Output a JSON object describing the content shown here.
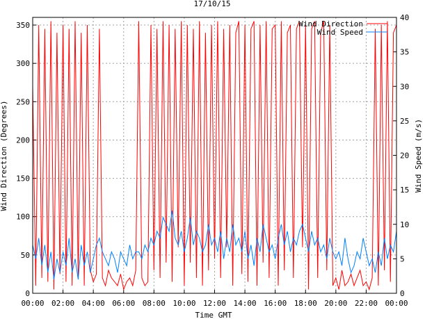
{
  "chart_data": {
    "type": "line",
    "title": "17/10/15",
    "xlabel": "Time GMT",
    "ylabel_left": "Wind Direction (Degrees)",
    "ylabel_right": "Wind Speed (m/s)",
    "x_ticks": [
      "00:00",
      "02:00",
      "04:00",
      "06:00",
      "08:00",
      "10:00",
      "12:00",
      "14:00",
      "16:00",
      "18:00",
      "20:00",
      "22:00",
      "00:00"
    ],
    "y_left_ticks": [
      0,
      50,
      100,
      150,
      200,
      250,
      300,
      350
    ],
    "y_right_ticks": [
      0,
      5,
      10,
      15,
      20,
      25,
      30,
      35,
      40
    ],
    "xlim_hours": [
      0,
      24
    ],
    "ylim_left": [
      0,
      360
    ],
    "ylim_right": [
      0,
      40
    ],
    "grid": true,
    "legend_position": "top-right",
    "colors": {
      "direction": "#ff0000",
      "speed": "#0080ff"
    },
    "series": [
      {
        "name": "Wind Direction",
        "axis": "left",
        "x_hours": [
          0.0,
          0.2,
          0.4,
          0.6,
          0.8,
          1.0,
          1.2,
          1.4,
          1.6,
          1.8,
          2.0,
          2.2,
          2.4,
          2.6,
          2.8,
          3.0,
          3.2,
          3.4,
          3.6,
          3.8,
          4.0,
          4.2,
          4.4,
          4.6,
          4.8,
          5.0,
          5.2,
          5.4,
          5.6,
          5.8,
          6.0,
          6.2,
          6.4,
          6.6,
          6.8,
          7.0,
          7.2,
          7.4,
          7.6,
          7.8,
          8.0,
          8.2,
          8.4,
          8.6,
          8.8,
          9.0,
          9.2,
          9.4,
          9.6,
          9.8,
          10.0,
          10.2,
          10.4,
          10.6,
          10.8,
          11.0,
          11.2,
          11.4,
          11.6,
          11.8,
          12.0,
          12.2,
          12.4,
          12.6,
          12.8,
          13.0,
          13.2,
          13.4,
          13.6,
          13.8,
          14.0,
          14.2,
          14.4,
          14.6,
          14.8,
          15.0,
          15.2,
          15.4,
          15.6,
          15.8,
          16.0,
          16.2,
          16.4,
          16.6,
          16.8,
          17.0,
          17.2,
          17.4,
          17.6,
          17.8,
          18.0,
          18.2,
          18.4,
          18.6,
          18.8,
          19.0,
          19.2,
          19.4,
          19.6,
          19.8,
          20.0,
          20.2,
          20.4,
          20.6,
          20.8,
          21.0,
          21.2,
          21.4,
          21.6,
          21.8,
          22.0,
          22.2,
          22.4,
          22.6,
          22.8,
          23.0,
          23.2,
          23.4,
          23.6,
          23.8,
          24.0
        ],
        "values": [
          270,
          10,
          350,
          20,
          345,
          15,
          355,
          5,
          340,
          25,
          350,
          15,
          345,
          10,
          355,
          20,
          340,
          10,
          350,
          30,
          15,
          25,
          345,
          20,
          10,
          30,
          20,
          15,
          10,
          25,
          5,
          15,
          20,
          10,
          30,
          355,
          20,
          10,
          15,
          350,
          30,
          345,
          20,
          355,
          40,
          350,
          15,
          345,
          60,
          355,
          10,
          350,
          40,
          345,
          20,
          355,
          10,
          340,
          30,
          350,
          45,
          355,
          20,
          345,
          60,
          350,
          10,
          340,
          355,
          25,
          350,
          15,
          345,
          355,
          10,
          350,
          40,
          355,
          20,
          345,
          350,
          10,
          355,
          30,
          340,
          350,
          20,
          345,
          355,
          60,
          350,
          5,
          345,
          355,
          20,
          340,
          355,
          30,
          350,
          10,
          20,
          5,
          30,
          10,
          15,
          25,
          10,
          20,
          30,
          10,
          15,
          5,
          20,
          345,
          10,
          350,
          30,
          355,
          15,
          340,
          350
        ]
      },
      {
        "name": "Wind Speed",
        "axis": "right",
        "x_hours": [
          0.0,
          0.2,
          0.4,
          0.6,
          0.8,
          1.0,
          1.2,
          1.4,
          1.6,
          1.8,
          2.0,
          2.2,
          2.4,
          2.6,
          2.8,
          3.0,
          3.2,
          3.4,
          3.6,
          3.8,
          4.0,
          4.2,
          4.4,
          4.6,
          4.8,
          5.0,
          5.2,
          5.4,
          5.6,
          5.8,
          6.0,
          6.2,
          6.4,
          6.6,
          6.8,
          7.0,
          7.2,
          7.4,
          7.6,
          7.8,
          8.0,
          8.2,
          8.4,
          8.6,
          8.8,
          9.0,
          9.2,
          9.4,
          9.6,
          9.8,
          10.0,
          10.2,
          10.4,
          10.6,
          10.8,
          11.0,
          11.2,
          11.4,
          11.6,
          11.8,
          12.0,
          12.2,
          12.4,
          12.6,
          12.8,
          13.0,
          13.2,
          13.4,
          13.6,
          13.8,
          14.0,
          14.2,
          14.4,
          14.6,
          14.8,
          15.0,
          15.2,
          15.4,
          15.6,
          15.8,
          16.0,
          16.2,
          16.4,
          16.6,
          16.8,
          17.0,
          17.2,
          17.4,
          17.6,
          17.8,
          18.0,
          18.2,
          18.4,
          18.6,
          18.8,
          19.0,
          19.2,
          19.4,
          19.6,
          19.8,
          20.0,
          20.2,
          20.4,
          20.6,
          20.8,
          21.0,
          21.2,
          21.4,
          21.6,
          21.8,
          22.0,
          22.2,
          22.4,
          22.6,
          22.8,
          23.0,
          23.2,
          23.4,
          23.6,
          23.8,
          24.0
        ],
        "values": [
          7,
          5,
          8,
          4,
          7,
          3,
          6,
          2,
          5,
          3,
          6,
          4,
          8,
          3,
          5,
          2,
          7,
          4,
          6,
          3,
          5,
          7,
          8,
          6,
          5,
          4,
          6,
          5,
          3,
          6,
          5,
          4,
          7,
          5,
          6,
          6,
          5,
          7,
          6,
          8,
          7,
          9,
          8,
          11,
          10,
          9,
          12,
          8,
          7,
          9,
          6,
          8,
          11,
          7,
          9,
          8,
          6,
          7,
          10,
          7,
          8,
          6,
          9,
          5,
          8,
          6,
          10,
          7,
          8,
          6,
          9,
          5,
          7,
          4,
          8,
          6,
          10,
          8,
          6,
          7,
          5,
          8,
          10,
          7,
          9,
          6,
          8,
          7,
          9,
          10,
          8,
          6,
          9,
          7,
          8,
          6,
          7,
          5,
          8,
          6,
          5,
          6,
          4,
          8,
          5,
          3,
          4,
          6,
          5,
          8,
          6,
          4,
          5,
          3,
          6,
          4,
          8,
          5,
          7,
          6,
          9
        ]
      }
    ]
  }
}
